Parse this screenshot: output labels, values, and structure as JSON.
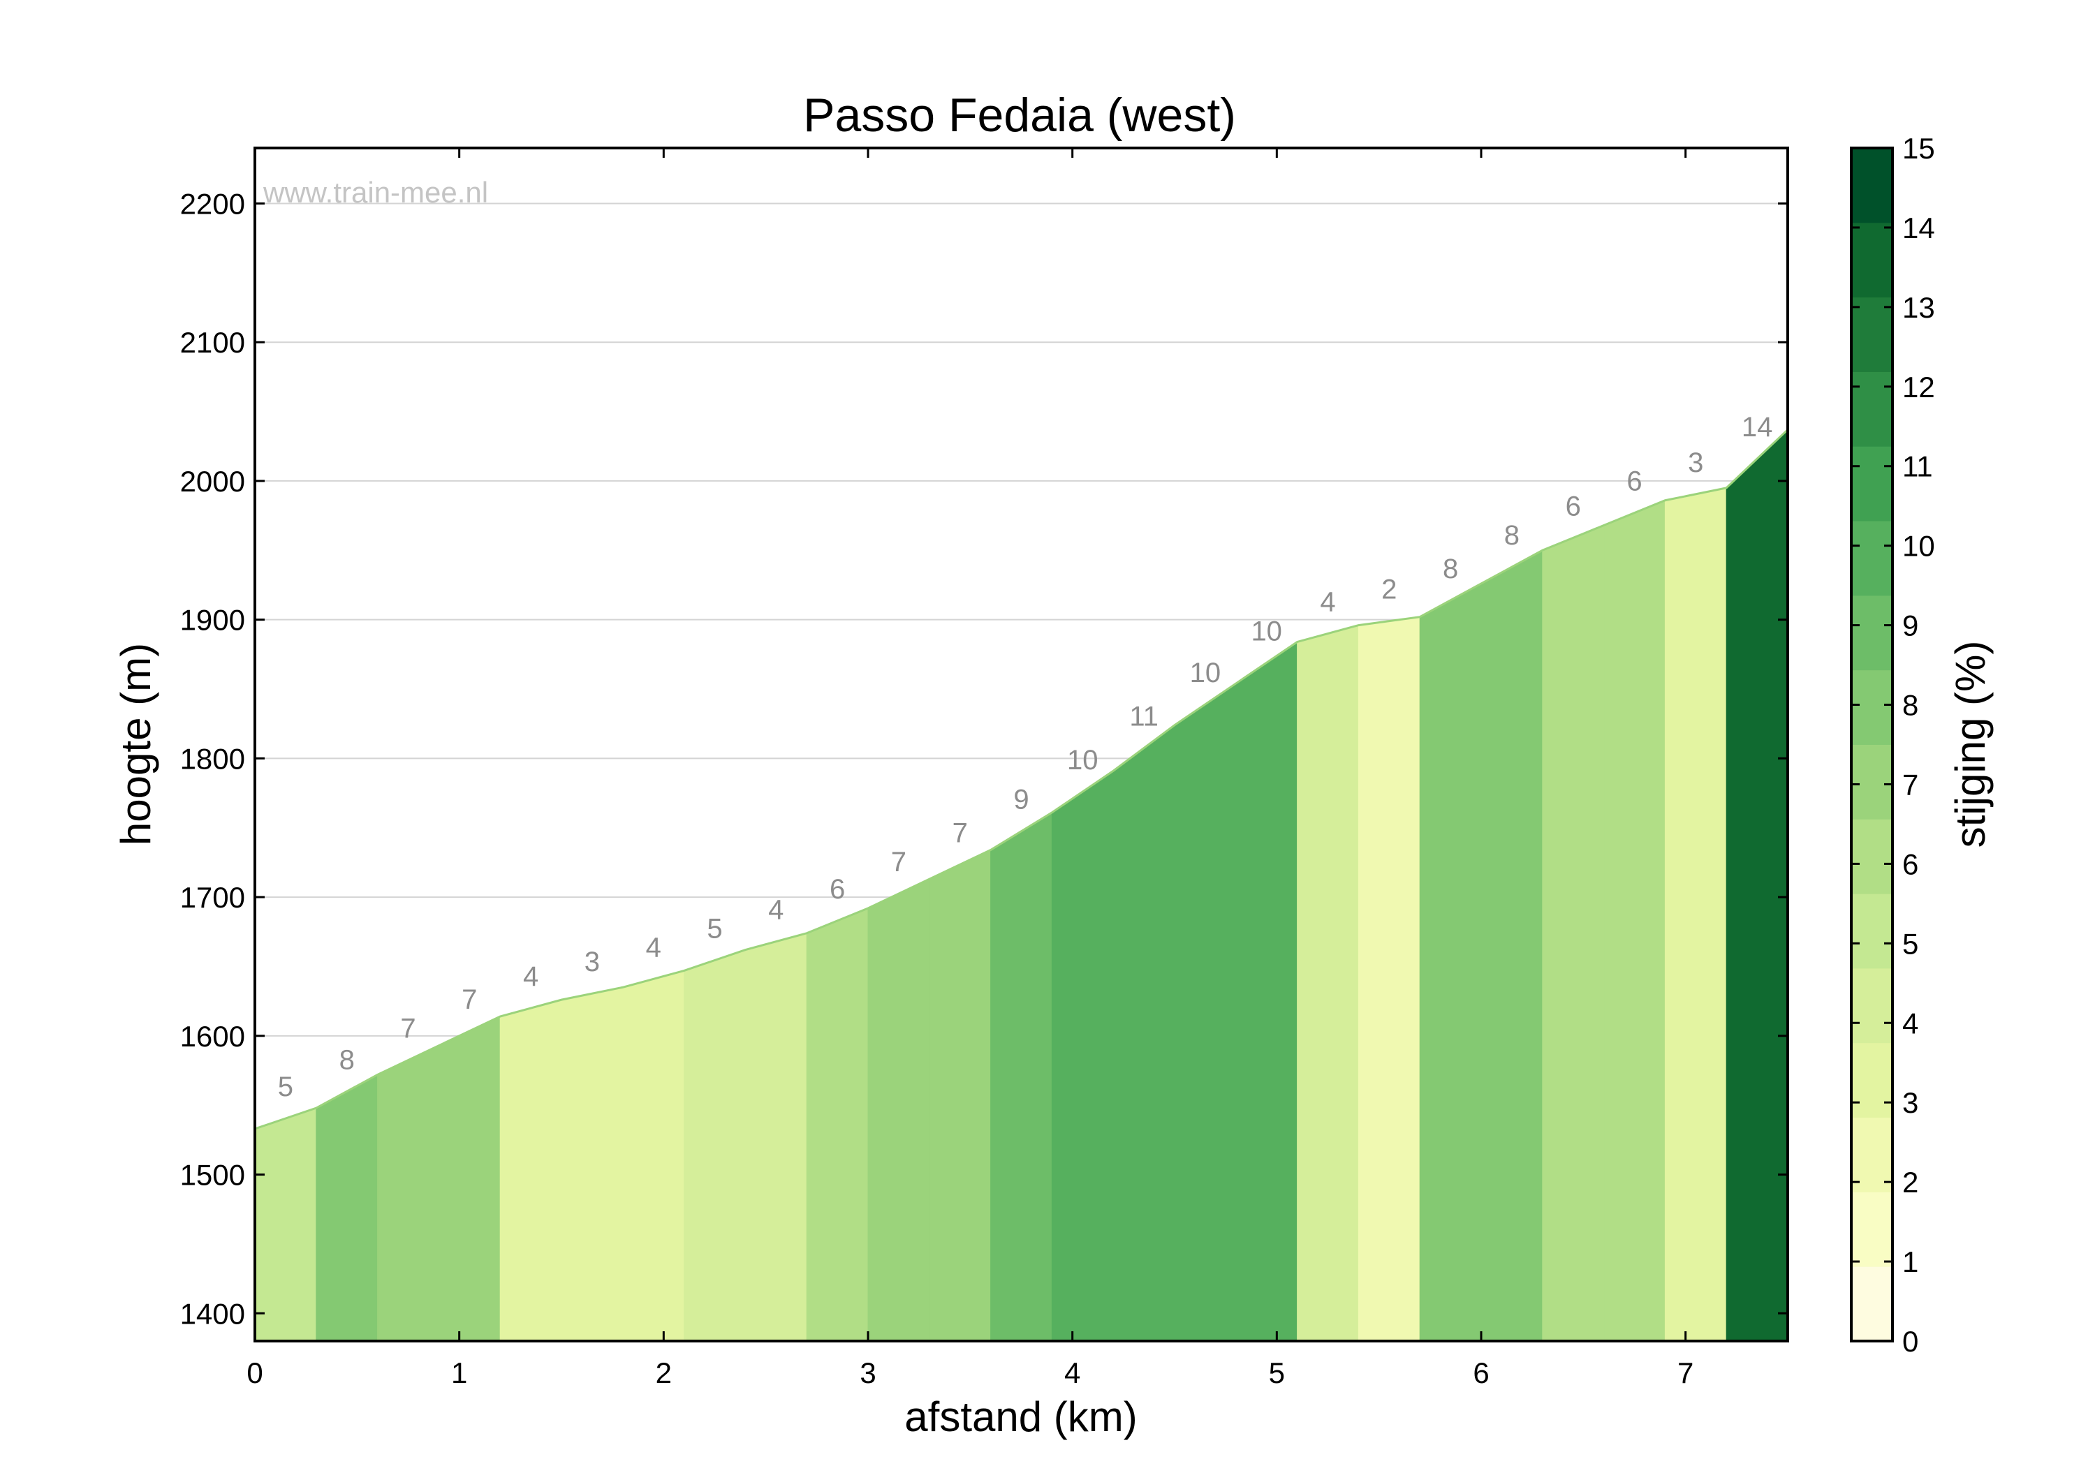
{
  "chart_data": {
    "type": "area",
    "title": "Passo Fedaia (west)",
    "xlabel": "afstand (km)",
    "ylabel": "hoogte (m)",
    "watermark": "www.train-mee.nl",
    "xlim": [
      0,
      7.5
    ],
    "ylim": [
      1380,
      2240
    ],
    "x_ticks": [
      0,
      1,
      2,
      3,
      4,
      5,
      6,
      7
    ],
    "y_ticks": [
      1400,
      1500,
      1600,
      1700,
      1800,
      1900,
      2000,
      2100,
      2200
    ],
    "grid": "horizontal",
    "segments": [
      {
        "x0": 0.0,
        "x1": 0.3,
        "points": [
          [
            0.0,
            1533
          ],
          [
            0.3,
            1548
          ]
        ],
        "grade": 5
      },
      {
        "x0": 0.3,
        "x1": 0.6,
        "points": [
          [
            0.3,
            1548
          ],
          [
            0.6,
            1572
          ]
        ],
        "grade": 8
      },
      {
        "x0": 0.6,
        "x1": 1.2,
        "points": [
          [
            0.6,
            1572
          ],
          [
            0.9,
            1593
          ],
          [
            1.2,
            1614
          ]
        ],
        "grade": 7
      },
      {
        "x0": 1.2,
        "x1": 2.1,
        "points": [
          [
            1.2,
            1614
          ],
          [
            1.5,
            1626
          ],
          [
            1.8,
            1635
          ],
          [
            2.1,
            1647
          ]
        ],
        "grade": 3
      },
      {
        "x0": 2.1,
        "x1": 2.7,
        "points": [
          [
            2.1,
            1647
          ],
          [
            2.4,
            1662
          ],
          [
            2.7,
            1674
          ]
        ],
        "grade": 4
      },
      {
        "x0": 2.7,
        "x1": 3.0,
        "points": [
          [
            2.7,
            1674
          ],
          [
            3.0,
            1692
          ]
        ],
        "grade": 6
      },
      {
        "x0": 3.0,
        "x1": 3.3,
        "points": [
          [
            3.0,
            1692
          ],
          [
            3.3,
            1713
          ]
        ],
        "grade": 7
      },
      {
        "x0": 3.3,
        "x1": 3.6,
        "points": [
          [
            3.3,
            1713
          ],
          [
            3.6,
            1734
          ]
        ],
        "grade": 7
      },
      {
        "x0": 3.6,
        "x1": 3.9,
        "points": [
          [
            3.6,
            1734
          ],
          [
            3.9,
            1761
          ]
        ],
        "grade": 9
      },
      {
        "x0": 3.9,
        "x1": 5.1,
        "points": [
          [
            3.9,
            1761
          ],
          [
            4.2,
            1791
          ],
          [
            4.5,
            1824
          ],
          [
            4.8,
            1854
          ],
          [
            5.1,
            1884
          ]
        ],
        "grade": 10
      },
      {
        "x0": 5.1,
        "x1": 5.4,
        "points": [
          [
            5.1,
            1884
          ],
          [
            5.4,
            1896
          ]
        ],
        "grade": 4
      },
      {
        "x0": 5.4,
        "x1": 5.7,
        "points": [
          [
            5.4,
            1896
          ],
          [
            5.7,
            1902
          ]
        ],
        "grade": 2
      },
      {
        "x0": 5.7,
        "x1": 6.3,
        "points": [
          [
            5.7,
            1902
          ],
          [
            6.0,
            1926
          ],
          [
            6.3,
            1950
          ]
        ],
        "grade": 8
      },
      {
        "x0": 6.3,
        "x1": 6.6,
        "points": [
          [
            6.3,
            1950
          ],
          [
            6.6,
            1968
          ]
        ],
        "grade": 6
      },
      {
        "x0": 6.6,
        "x1": 6.9,
        "points": [
          [
            6.6,
            1968
          ],
          [
            6.9,
            1986
          ]
        ],
        "grade": 6
      },
      {
        "x0": 6.9,
        "x1": 7.2,
        "points": [
          [
            6.9,
            1986
          ],
          [
            7.2,
            1995
          ]
        ],
        "grade": 3
      },
      {
        "x0": 7.2,
        "x1": 7.5,
        "points": [
          [
            7.2,
            1995
          ],
          [
            7.5,
            2037
          ]
        ],
        "grade": 14
      }
    ],
    "grade_labels": [
      {
        "x": 0.15,
        "y": 1540.5,
        "label": "5"
      },
      {
        "x": 0.45,
        "y": 1560,
        "label": "8"
      },
      {
        "x": 0.75,
        "y": 1582.5,
        "label": "7"
      },
      {
        "x": 1.05,
        "y": 1603.5,
        "label": "7"
      },
      {
        "x": 1.35,
        "y": 1620,
        "label": "4"
      },
      {
        "x": 1.65,
        "y": 1630.5,
        "label": "3"
      },
      {
        "x": 1.95,
        "y": 1641,
        "label": "4"
      },
      {
        "x": 2.25,
        "y": 1654.5,
        "label": "5"
      },
      {
        "x": 2.55,
        "y": 1668,
        "label": "4"
      },
      {
        "x": 2.85,
        "y": 1683,
        "label": "6"
      },
      {
        "x": 3.15,
        "y": 1702.5,
        "label": "7"
      },
      {
        "x": 3.45,
        "y": 1723.5,
        "label": "7"
      },
      {
        "x": 3.75,
        "y": 1747.5,
        "label": "9"
      },
      {
        "x": 4.05,
        "y": 1776,
        "label": "10"
      },
      {
        "x": 4.35,
        "y": 1807.5,
        "label": "11"
      },
      {
        "x": 4.65,
        "y": 1839,
        "label": "10"
      },
      {
        "x": 4.95,
        "y": 1869,
        "label": "10"
      },
      {
        "x": 5.25,
        "y": 1890,
        "label": "4"
      },
      {
        "x": 5.55,
        "y": 1899,
        "label": "2"
      },
      {
        "x": 5.85,
        "y": 1914,
        "label": "8"
      },
      {
        "x": 6.15,
        "y": 1938,
        "label": "8"
      },
      {
        "x": 6.45,
        "y": 1959,
        "label": "6"
      },
      {
        "x": 6.75,
        "y": 1977,
        "label": "6"
      },
      {
        "x": 7.05,
        "y": 1990.5,
        "label": "3"
      },
      {
        "x": 7.35,
        "y": 2016,
        "label": "14"
      }
    ],
    "colorbar": {
      "label": "stijging (%)",
      "min": 0,
      "max": 15,
      "ticks": [
        0,
        1,
        2,
        3,
        4,
        5,
        6,
        7,
        8,
        9,
        10,
        11,
        12,
        13,
        14,
        15
      ],
      "colors": [
        "#fefce0",
        "#f9fdc4",
        "#f0f9b1",
        "#e3f4a1",
        "#d5ee9a",
        "#c4e892",
        "#b1de86",
        "#9bd37b",
        "#84c972",
        "#6dbd68",
        "#56b05e",
        "#40a152",
        "#2f8f46",
        "#1f7c3a",
        "#106a30",
        "#00512a"
      ]
    },
    "profile_line_color": "#9bd37b"
  }
}
